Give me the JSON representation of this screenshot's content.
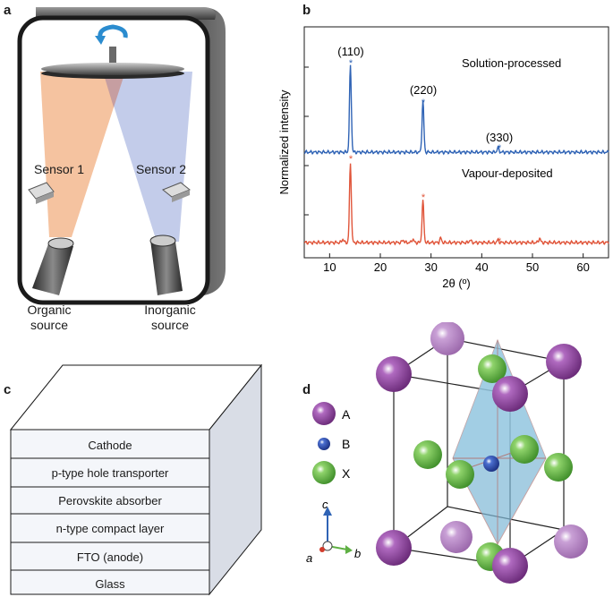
{
  "panels": {
    "a": {
      "letter": "a",
      "sensor1": "Sensor 1",
      "sensor2": "Sensor 2",
      "organic": [
        "Organic",
        "source"
      ],
      "inorganic": [
        "Inorganic",
        "source"
      ],
      "colors": {
        "organic_beam": "#f3b98f",
        "inorganic_beam": "#b9c3e6",
        "chamber": "#1a1a1a"
      }
    },
    "b": {
      "letter": "b",
      "annotations": {
        "p110": "(110)",
        "p220": "(220)",
        "p330": "(330)",
        "solution": "Solution-processed",
        "vapour": "Vapour-deposited",
        "star": "*"
      }
    },
    "c": {
      "letter": "c",
      "layers": [
        "Cathode",
        "p-type hole transporter",
        "Perovskite absorber",
        "n-type compact layer",
        "FTO (anode)",
        "Glass"
      ]
    },
    "d": {
      "letter": "d",
      "legend": [
        "A",
        "B",
        "X"
      ],
      "axes": {
        "c": "c",
        "a": "a",
        "b": "b"
      },
      "colors": {
        "A": "#8e3d9c",
        "B": "#1f3f9f",
        "X": "#5fb043",
        "octahedron": "#7fb8d6"
      }
    }
  },
  "chart_data": {
    "type": "line",
    "xlabel": "2θ (º)",
    "ylabel": "Normalized intensity",
    "xlim": [
      5,
      65
    ],
    "xticks": [
      10,
      20,
      30,
      40,
      50,
      60
    ],
    "series": [
      {
        "name": "Solution-processed",
        "color": "#2f63b5",
        "baseline": 1.0,
        "peaks": [
          {
            "x": 14.1,
            "h": 0.98
          },
          {
            "x": 28.4,
            "h": 0.58
          },
          {
            "x": 43.2,
            "h": 0.05
          }
        ]
      },
      {
        "name": "Vapour-deposited",
        "color": "#e0553a",
        "baseline": 0.0,
        "peaks": [
          {
            "x": 12.6,
            "h": 0.04
          },
          {
            "x": 14.1,
            "h": 0.9
          },
          {
            "x": 24.5,
            "h": 0.03
          },
          {
            "x": 26.4,
            "h": 0.04
          },
          {
            "x": 28.4,
            "h": 0.47
          },
          {
            "x": 31.9,
            "h": 0.05
          },
          {
            "x": 37.7,
            "h": 0.03
          },
          {
            "x": 43.2,
            "h": 0.03
          },
          {
            "x": 51.4,
            "h": 0.05
          }
        ]
      }
    ]
  }
}
